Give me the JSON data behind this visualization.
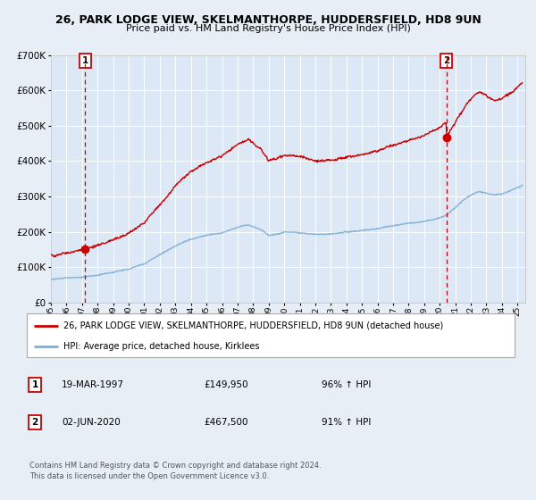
{
  "title_line1": "26, PARK LODGE VIEW, SKELMANTHORPE, HUDDERSFIELD, HD8 9UN",
  "title_line2": "Price paid vs. HM Land Registry's House Price Index (HPI)",
  "ylim": [
    0,
    700000
  ],
  "yticks": [
    0,
    100000,
    200000,
    300000,
    400000,
    500000,
    600000,
    700000
  ],
  "ytick_labels": [
    "£0",
    "£100K",
    "£200K",
    "£300K",
    "£400K",
    "£500K",
    "£600K",
    "£700K"
  ],
  "xlim_start": 1995.0,
  "xlim_end": 2025.5,
  "red_color": "#cc0000",
  "blue_color": "#7aadd4",
  "sale1_year": 1997.21,
  "sale1_price": 149950,
  "sale2_year": 2020.42,
  "sale2_price": 467500,
  "legend_line1": "26, PARK LODGE VIEW, SKELMANTHORPE, HUDDERSFIELD, HD8 9UN (detached house)",
  "legend_line2": "HPI: Average price, detached house, Kirklees",
  "table_row1_num": "1",
  "table_row1_date": "19-MAR-1997",
  "table_row1_price": "£149,950",
  "table_row1_hpi": "96% ↑ HPI",
  "table_row2_num": "2",
  "table_row2_date": "02-JUN-2020",
  "table_row2_price": "£467,500",
  "table_row2_hpi": "91% ↑ HPI",
  "footnote1": "Contains HM Land Registry data © Crown copyright and database right 2024.",
  "footnote2": "This data is licensed under the Open Government Licence v3.0.",
  "background_color": "#e8eef5",
  "plot_bg_color": "#dce8f5"
}
